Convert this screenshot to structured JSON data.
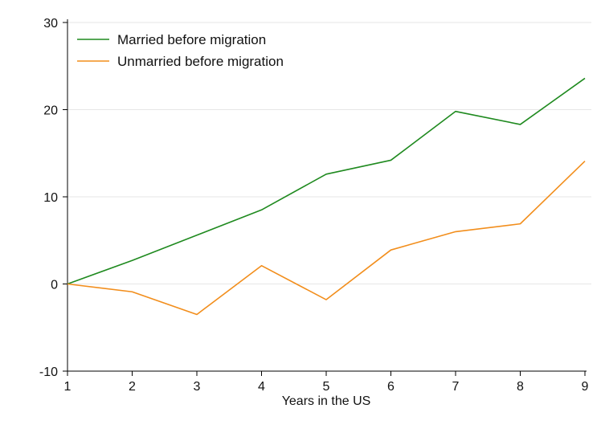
{
  "chart_data": {
    "type": "line",
    "title": "",
    "xlabel": "Years in the US",
    "ylabel": "",
    "x": [
      1,
      2,
      3,
      4,
      5,
      6,
      7,
      8,
      9
    ],
    "xlim": [
      1,
      9
    ],
    "ylim": [
      -10,
      30
    ],
    "yticks": [
      -10,
      0,
      10,
      20,
      30
    ],
    "xticks": [
      1,
      2,
      3,
      4,
      5,
      6,
      7,
      8,
      9
    ],
    "grid": true,
    "legend_position": "top-left",
    "series": [
      {
        "name": "Married before migration",
        "color": "#1f8a1f",
        "values": [
          0,
          2.7,
          5.6,
          8.5,
          12.6,
          14.2,
          19.8,
          18.3,
          23.6
        ]
      },
      {
        "name": "Unmarried before migration",
        "color": "#f28e1c",
        "values": [
          0,
          -0.9,
          -3.5,
          2.1,
          -1.8,
          3.9,
          6.0,
          6.9,
          14.1
        ]
      }
    ]
  }
}
